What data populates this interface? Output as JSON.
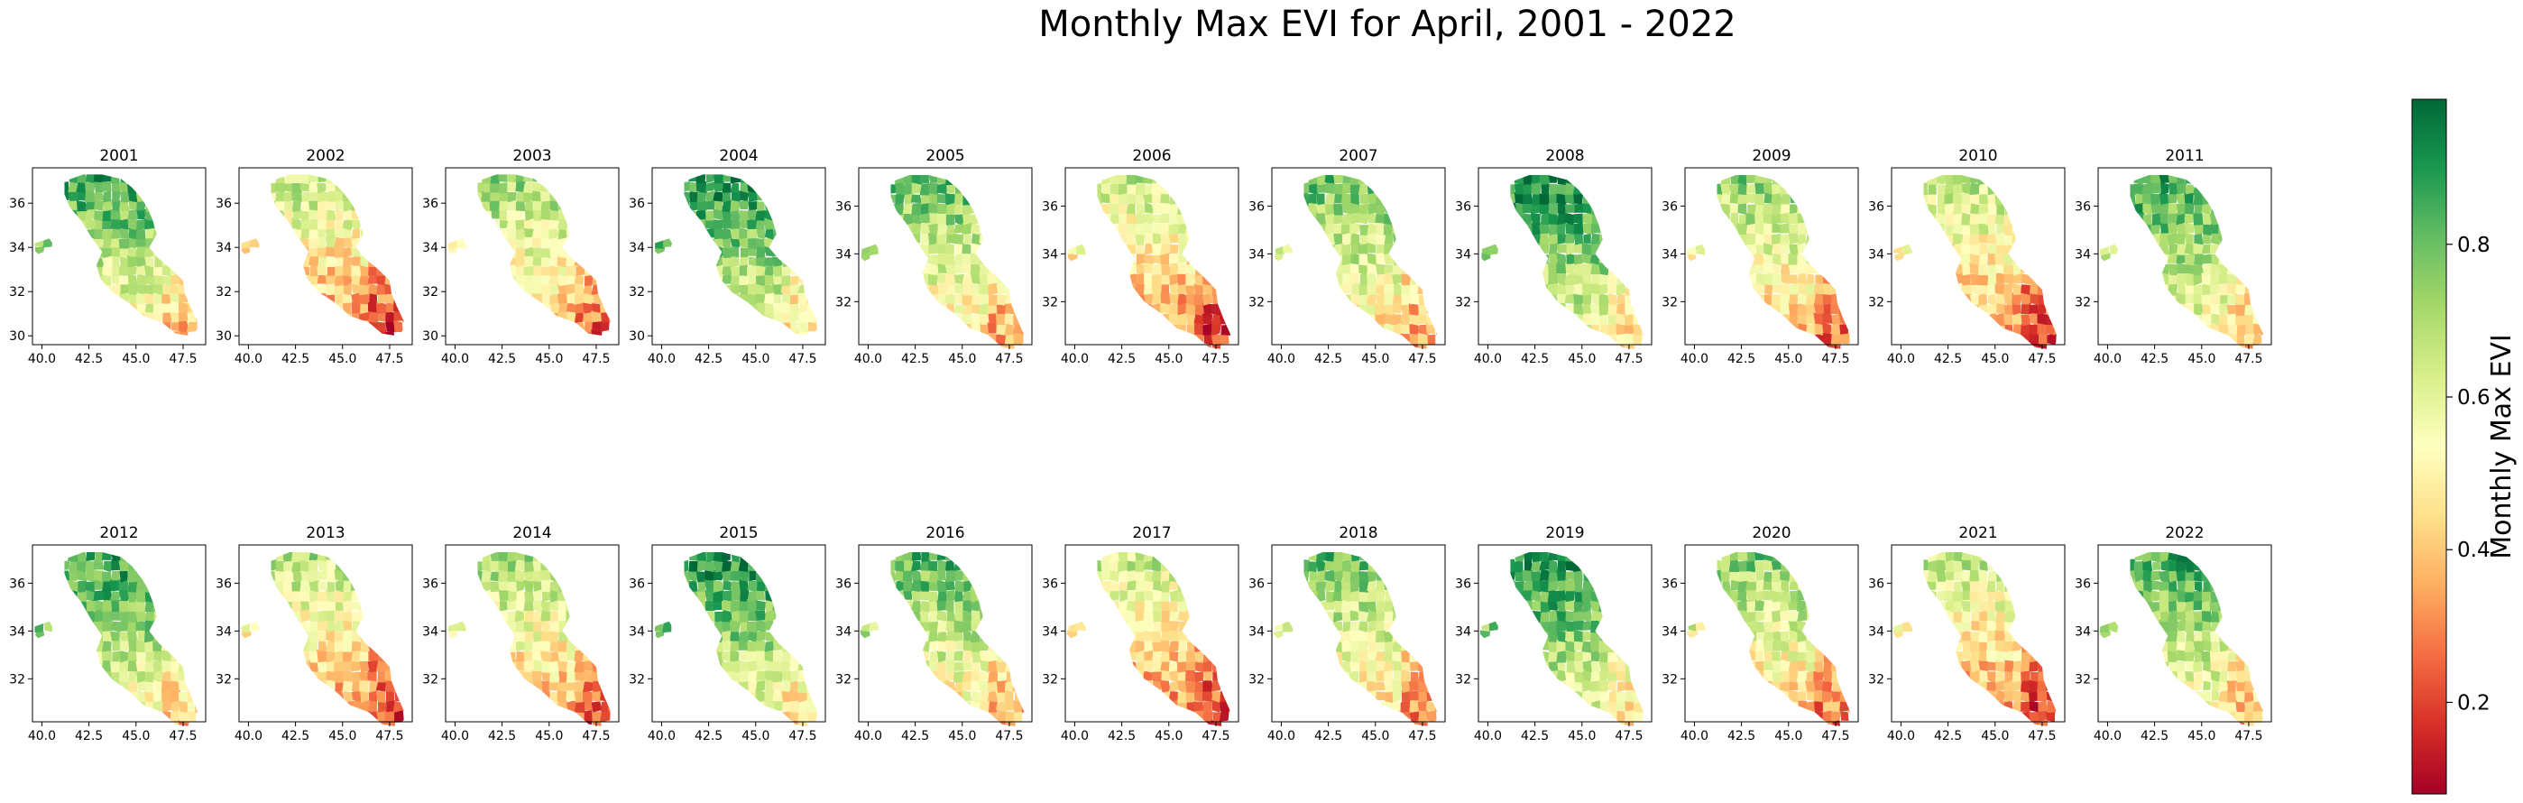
{
  "figure": {
    "title": "Monthly Max EVI for April, 2001 - 2022"
  },
  "panels": [
    {
      "year": "2001",
      "lat_ticks": [
        "30",
        "32",
        "34",
        "36"
      ],
      "lon_ticks": [
        "40.0",
        "42.5",
        "45.0",
        "47.5"
      ]
    },
    {
      "year": "2002",
      "lat_ticks": [
        "30",
        "32",
        "34",
        "36"
      ],
      "lon_ticks": [
        "40.0",
        "42.5",
        "45.0",
        "47.5"
      ]
    },
    {
      "year": "2003",
      "lat_ticks": [
        "30",
        "32",
        "34",
        "36"
      ],
      "lon_ticks": [
        "40.0",
        "42.5",
        "45.0",
        "47.5"
      ]
    },
    {
      "year": "2004",
      "lat_ticks": [
        "30",
        "32",
        "34",
        "36"
      ],
      "lon_ticks": [
        "40.0",
        "42.5",
        "45.0",
        "47.5"
      ]
    },
    {
      "year": "2005",
      "lat_ticks": [
        "32",
        "34",
        "36"
      ],
      "lon_ticks": [
        "40.0",
        "42.5",
        "45.0",
        "47.5"
      ]
    },
    {
      "year": "2006",
      "lat_ticks": [
        "32",
        "34",
        "36"
      ],
      "lon_ticks": [
        "40.0",
        "42.5",
        "45.0",
        "47.5"
      ]
    },
    {
      "year": "2007",
      "lat_ticks": [
        "32",
        "34",
        "36"
      ],
      "lon_ticks": [
        "40.0",
        "42.5",
        "45.0",
        "47.5"
      ]
    },
    {
      "year": "2008",
      "lat_ticks": [
        "32",
        "34",
        "36"
      ],
      "lon_ticks": [
        "40.0",
        "42.5",
        "45.0",
        "47.5"
      ]
    },
    {
      "year": "2009",
      "lat_ticks": [
        "32",
        "34",
        "36"
      ],
      "lon_ticks": [
        "40.0",
        "42.5",
        "45.0",
        "47.5"
      ]
    },
    {
      "year": "2010",
      "lat_ticks": [
        "32",
        "34",
        "36"
      ],
      "lon_ticks": [
        "40.0",
        "42.5",
        "45.0",
        "47.5"
      ]
    },
    {
      "year": "2011",
      "lat_ticks": [
        "32",
        "34",
        "36"
      ],
      "lon_ticks": [
        "40.0",
        "42.5",
        "45.0",
        "47.5"
      ]
    },
    {
      "year": "2012",
      "lat_ticks": [
        "32",
        "34",
        "36"
      ],
      "lon_ticks": [
        "40.0",
        "42.5",
        "45.0",
        "47.5"
      ]
    },
    {
      "year": "2013",
      "lat_ticks": [
        "32",
        "34",
        "36"
      ],
      "lon_ticks": [
        "40.0",
        "42.5",
        "45.0",
        "47.5"
      ]
    },
    {
      "year": "2014",
      "lat_ticks": [
        "32",
        "34",
        "36"
      ],
      "lon_ticks": [
        "40.0",
        "42.5",
        "45.0",
        "47.5"
      ]
    },
    {
      "year": "2015",
      "lat_ticks": [
        "32",
        "34",
        "36"
      ],
      "lon_ticks": [
        "40.0",
        "42.5",
        "45.0",
        "47.5"
      ]
    },
    {
      "year": "2016",
      "lat_ticks": [
        "32",
        "34",
        "36"
      ],
      "lon_ticks": [
        "40.0",
        "42.5",
        "45.0",
        "47.5"
      ]
    },
    {
      "year": "2017",
      "lat_ticks": [
        "32",
        "34",
        "36"
      ],
      "lon_ticks": [
        "40.0",
        "42.5",
        "45.0",
        "47.5"
      ]
    },
    {
      "year": "2018",
      "lat_ticks": [
        "32",
        "34",
        "36"
      ],
      "lon_ticks": [
        "40.0",
        "42.5",
        "45.0",
        "47.5"
      ]
    },
    {
      "year": "2019",
      "lat_ticks": [
        "32",
        "34",
        "36"
      ],
      "lon_ticks": [
        "40.0",
        "42.5",
        "45.0",
        "47.5"
      ]
    },
    {
      "year": "2020",
      "lat_ticks": [
        "32",
        "34",
        "36"
      ],
      "lon_ticks": [
        "40.0",
        "42.5",
        "45.0",
        "47.5"
      ]
    },
    {
      "year": "2021",
      "lat_ticks": [
        "32",
        "34",
        "36"
      ],
      "lon_ticks": [
        "40.0",
        "42.5",
        "45.0",
        "47.5"
      ]
    },
    {
      "year": "2022",
      "lat_ticks": [
        "32",
        "34",
        "36"
      ],
      "lon_ticks": [
        "40.0",
        "42.5",
        "45.0",
        "47.5"
      ]
    }
  ],
  "colorbar": {
    "label": "Monthly Max EVI",
    "ticks": [
      "0.2",
      "0.4",
      "0.6",
      "0.8"
    ],
    "colormap": [
      "#a50026",
      "#d73027",
      "#f46d43",
      "#fdae61",
      "#fee08b",
      "#ffffbf",
      "#d9ef8b",
      "#a6d96a",
      "#66bd63",
      "#1a9850",
      "#006837"
    ]
  }
}
